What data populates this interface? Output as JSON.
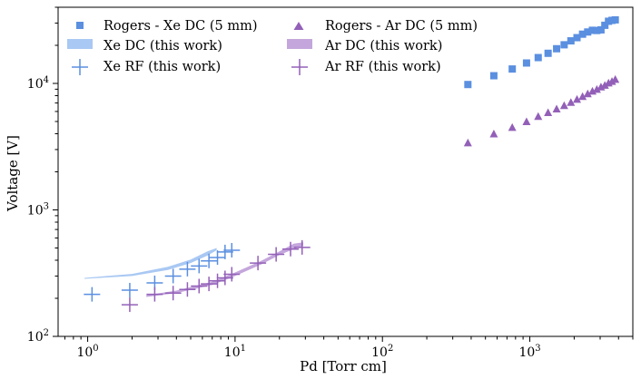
{
  "chart_data": {
    "type": "scatter",
    "xscale": "log",
    "yscale": "log",
    "xlabel": "Pd [Torr cm]",
    "ylabel": "Voltage [V]",
    "xlim": [
      0.63,
      5000
    ],
    "ylim": [
      100,
      40000
    ],
    "x_ticks": [
      {
        "value": 1,
        "base": "10",
        "exp": "0"
      },
      {
        "value": 10,
        "base": "10",
        "exp": "1"
      },
      {
        "value": 100,
        "base": "10",
        "exp": "2"
      },
      {
        "value": 1000,
        "base": "10",
        "exp": "3"
      }
    ],
    "y_ticks": [
      {
        "value": 100,
        "base": "10",
        "exp": "2"
      },
      {
        "value": 1000,
        "base": "10",
        "exp": "3"
      },
      {
        "value": 10000,
        "base": "10",
        "exp": "4"
      }
    ],
    "colors": {
      "xe": "#5b8fe0",
      "xe_band": "#a9c8f3",
      "ar": "#9360b8",
      "ar_band": "#c4a6dc"
    },
    "legend_position": "top-left",
    "series": [
      {
        "name": "Rogers - Xe DC (5 mm)",
        "kind": "square",
        "color_key": "xe",
        "x": [
          380,
          570,
          760,
          950,
          1140,
          1330,
          1520,
          1710,
          1900,
          2090,
          2280,
          2470,
          2660,
          2850,
          3040,
          3230,
          3420,
          3610,
          3800
        ],
        "y": [
          9800,
          11500,
          13000,
          14500,
          16000,
          17300,
          18800,
          20200,
          21700,
          23000,
          24500,
          25500,
          26300,
          26200,
          26500,
          28800,
          31000,
          31500,
          31800
        ]
      },
      {
        "name": "Rogers - Ar DC (5 mm)",
        "kind": "triangle",
        "color_key": "ar",
        "x": [
          380,
          570,
          760,
          950,
          1140,
          1330,
          1520,
          1710,
          1900,
          2090,
          2280,
          2470,
          2660,
          2850,
          3040,
          3230,
          3420,
          3610,
          3800
        ],
        "y": [
          3400,
          4000,
          4500,
          5000,
          5500,
          5900,
          6300,
          6700,
          7100,
          7500,
          7900,
          8300,
          8700,
          9000,
          9400,
          9700,
          10100,
          10400,
          10800
        ]
      },
      {
        "name": "Xe DC (this work)",
        "kind": "band",
        "color_key": "xe_band",
        "x": [
          0.95,
          2.0,
          3.5,
          5.0,
          6.5,
          7.5
        ],
        "y_low": [
          285,
          300,
          335,
          380,
          435,
          480
        ],
        "y_high": [
          290,
          312,
          355,
          405,
          470,
          500
        ]
      },
      {
        "name": "Ar DC (this work)",
        "kind": "band",
        "color_key": "ar_band",
        "x": [
          2.5,
          4.0,
          7.0,
          10.0,
          15.0,
          20.0,
          25.0,
          29.0
        ],
        "y_low": [
          205,
          220,
          255,
          300,
          370,
          440,
          490,
          520
        ],
        "y_high": [
          212,
          230,
          270,
          320,
          395,
          470,
          540,
          555
        ]
      },
      {
        "name": "Xe RF (this work)",
        "kind": "cross",
        "color_key": "xe",
        "x": [
          1.07,
          1.93,
          2.85,
          3.8,
          4.75,
          5.7,
          6.65,
          7.6,
          8.55,
          9.5
        ],
        "y": [
          215,
          232,
          265,
          300,
          340,
          360,
          395,
          420,
          465,
          480
        ]
      },
      {
        "name": "Ar RF (this work)",
        "kind": "cross",
        "color_key": "ar",
        "x": [
          1.93,
          2.85,
          3.8,
          4.75,
          5.7,
          6.65,
          7.6,
          8.55,
          9.5,
          14.3,
          19.0,
          23.8,
          28.5
        ],
        "y": [
          178,
          215,
          220,
          235,
          250,
          260,
          275,
          290,
          310,
          380,
          445,
          490,
          505
        ]
      }
    ]
  }
}
